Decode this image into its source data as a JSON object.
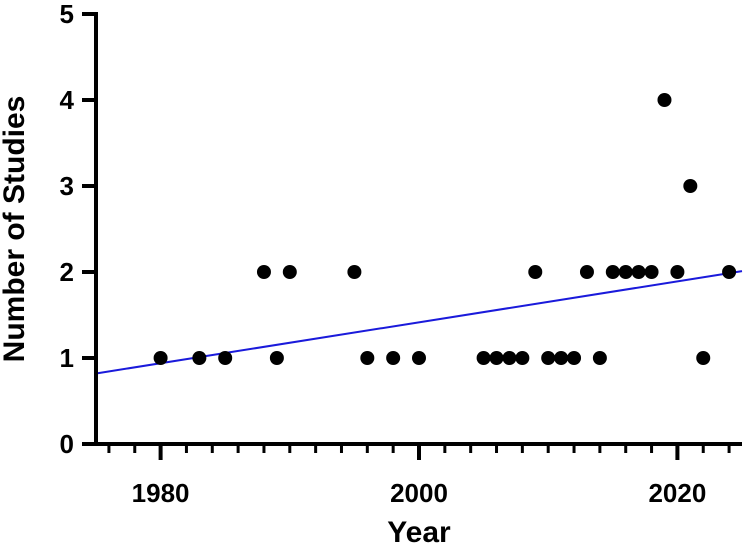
{
  "chart_data": {
    "type": "scatter",
    "title": "",
    "xlabel": "Year",
    "ylabel": "Number of Studies",
    "xlim": [
      1975,
      2025
    ],
    "ylim": [
      0,
      5
    ],
    "x_ticks_major": [
      1980,
      2000,
      2020
    ],
    "x_ticks_major_labels": [
      "1980",
      "2000",
      "2020"
    ],
    "x_tick_minor_step": 2,
    "y_ticks": [
      0,
      1,
      2,
      3,
      4,
      5
    ],
    "y_tick_labels": [
      "0",
      "1",
      "2",
      "3",
      "4",
      "5"
    ],
    "grid": false,
    "legend": "none",
    "points": [
      {
        "x": 1980,
        "y": 1
      },
      {
        "x": 1983,
        "y": 1
      },
      {
        "x": 1985,
        "y": 1
      },
      {
        "x": 1988,
        "y": 2
      },
      {
        "x": 1989,
        "y": 1
      },
      {
        "x": 1990,
        "y": 2
      },
      {
        "x": 1995,
        "y": 2
      },
      {
        "x": 1996,
        "y": 1
      },
      {
        "x": 1998,
        "y": 1
      },
      {
        "x": 2000,
        "y": 1
      },
      {
        "x": 2005,
        "y": 1
      },
      {
        "x": 2006,
        "y": 1
      },
      {
        "x": 2007,
        "y": 1
      },
      {
        "x": 2008,
        "y": 1
      },
      {
        "x": 2009,
        "y": 2
      },
      {
        "x": 2010,
        "y": 1
      },
      {
        "x": 2011,
        "y": 1
      },
      {
        "x": 2012,
        "y": 1
      },
      {
        "x": 2013,
        "y": 2
      },
      {
        "x": 2014,
        "y": 1
      },
      {
        "x": 2015,
        "y": 2
      },
      {
        "x": 2016,
        "y": 2
      },
      {
        "x": 2017,
        "y": 2
      },
      {
        "x": 2018,
        "y": 2
      },
      {
        "x": 2019,
        "y": 4
      },
      {
        "x": 2020,
        "y": 2
      },
      {
        "x": 2021,
        "y": 3
      },
      {
        "x": 2022,
        "y": 1
      },
      {
        "x": 2024,
        "y": 2
      }
    ],
    "trendline": {
      "type": "linear",
      "x": [
        1975,
        2025
      ],
      "y": [
        0.82,
        2.01
      ]
    },
    "colors": {
      "points": "#000000",
      "trendline": "#1a1adb",
      "axes": "#000000"
    }
  }
}
